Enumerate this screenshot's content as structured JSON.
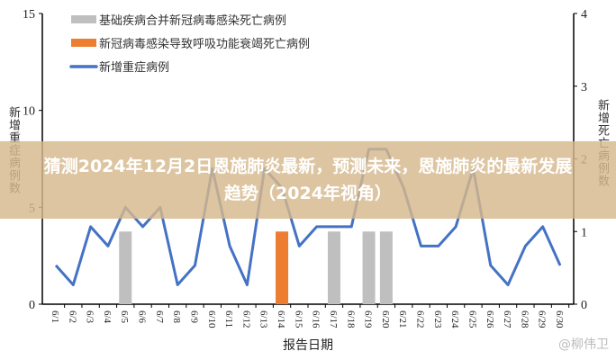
{
  "title": "猜测2024年12月2日恩施肺炎最新，预测未来，恩施肺炎的最新发展趋势（2024年视角）",
  "watermark": "@柳伟卫",
  "chart_data": {
    "type": "bar+line",
    "xlabel": "报告日期",
    "ylabel_left": "新增重症病例数",
    "ylabel_right": "新增死亡病例数",
    "ylim_left": [
      0,
      15
    ],
    "ylim_right": [
      0,
      4
    ],
    "yticks_left": [
      0,
      5,
      10,
      15
    ],
    "yticks_right": [
      0,
      1,
      2,
      3,
      4
    ],
    "legend_position": "top-left",
    "categories": [
      "6/1",
      "6/2",
      "6/3",
      "6/4",
      "6/5",
      "6/6",
      "6/7",
      "6/8",
      "6/9",
      "6/10",
      "6/11",
      "6/12",
      "6/13",
      "6/14",
      "6/15",
      "6/16",
      "6/17",
      "6/18",
      "6/19",
      "6/20",
      "6/21",
      "6/22",
      "6/23",
      "6/24",
      "6/25",
      "6/26",
      "6/27",
      "6/28",
      "6/29",
      "6/30"
    ],
    "series": [
      {
        "name": "基础疾病合并新冠病毒感染死亡病例",
        "type": "bar",
        "axis": "right",
        "color": "#BFBFBF",
        "values": [
          0,
          0,
          0,
          0,
          1,
          0,
          0,
          0,
          0,
          0,
          0,
          0,
          0,
          0,
          0,
          0,
          1,
          0,
          1,
          1,
          0,
          0,
          0,
          0,
          0,
          0,
          0,
          0,
          0,
          0
        ]
      },
      {
        "name": "新冠病毒感染导致呼吸功能衰竭死亡病例",
        "type": "bar",
        "axis": "right",
        "color": "#ED7D31",
        "values": [
          0,
          0,
          0,
          0,
          0,
          0,
          0,
          0,
          0,
          0,
          0,
          0,
          0,
          1,
          0,
          0,
          0,
          0,
          0,
          0,
          0,
          0,
          0,
          0,
          0,
          0,
          0,
          0,
          0,
          0
        ]
      },
      {
        "name": "新增重症病例",
        "type": "line",
        "axis": "left",
        "color": "#4472C4",
        "values": [
          2,
          1,
          4,
          3,
          5,
          4,
          5,
          1,
          2,
          7,
          3,
          1,
          7,
          6,
          3,
          4,
          4,
          4,
          8,
          8,
          6,
          3,
          3,
          4,
          7,
          2,
          1,
          3,
          4,
          2
        ]
      }
    ]
  }
}
